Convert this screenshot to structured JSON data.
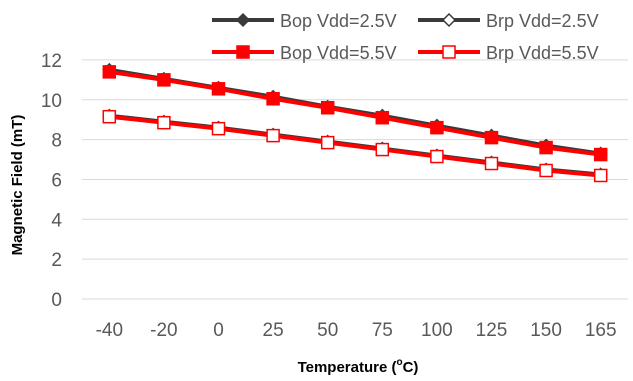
{
  "chart_data": {
    "type": "line",
    "categories": [
      "-40",
      "-20",
      "0",
      "25",
      "50",
      "75",
      "100",
      "125",
      "150",
      "165"
    ],
    "series": [
      {
        "name": "Bop Vdd=2.5V",
        "color": "#3a3a3a",
        "marker": "filled-diamond",
        "values": [
          11.5,
          11.05,
          10.6,
          10.15,
          9.65,
          9.2,
          8.7,
          8.2,
          7.7,
          7.3
        ]
      },
      {
        "name": "Brp Vdd=2.5V",
        "color": "#3a3a3a",
        "marker": "open-diamond",
        "values": [
          9.2,
          8.9,
          8.6,
          8.25,
          7.9,
          7.55,
          7.2,
          6.85,
          6.5,
          6.25
        ]
      },
      {
        "name": "Bop Vdd=5.5V",
        "color": "#ff0000",
        "marker": "filled-square",
        "values": [
          11.4,
          11.0,
          10.55,
          10.05,
          9.6,
          9.1,
          8.6,
          8.1,
          7.6,
          7.25
        ]
      },
      {
        "name": "Brp Vdd=5.5V",
        "color": "#ff0000",
        "marker": "open-square",
        "values": [
          9.15,
          8.85,
          8.55,
          8.2,
          7.85,
          7.5,
          7.15,
          6.8,
          6.45,
          6.2
        ]
      }
    ],
    "yticks": [
      "0",
      "2",
      "4",
      "6",
      "8",
      "10",
      "12"
    ],
    "ylim": [
      0,
      13
    ],
    "xlabel": {
      "main": "Temperature (",
      "sup": "o",
      "end": "C)"
    },
    "ylabel": "Magnetic Field (mT)",
    "grid": "horizontal",
    "legend_position": "top"
  }
}
